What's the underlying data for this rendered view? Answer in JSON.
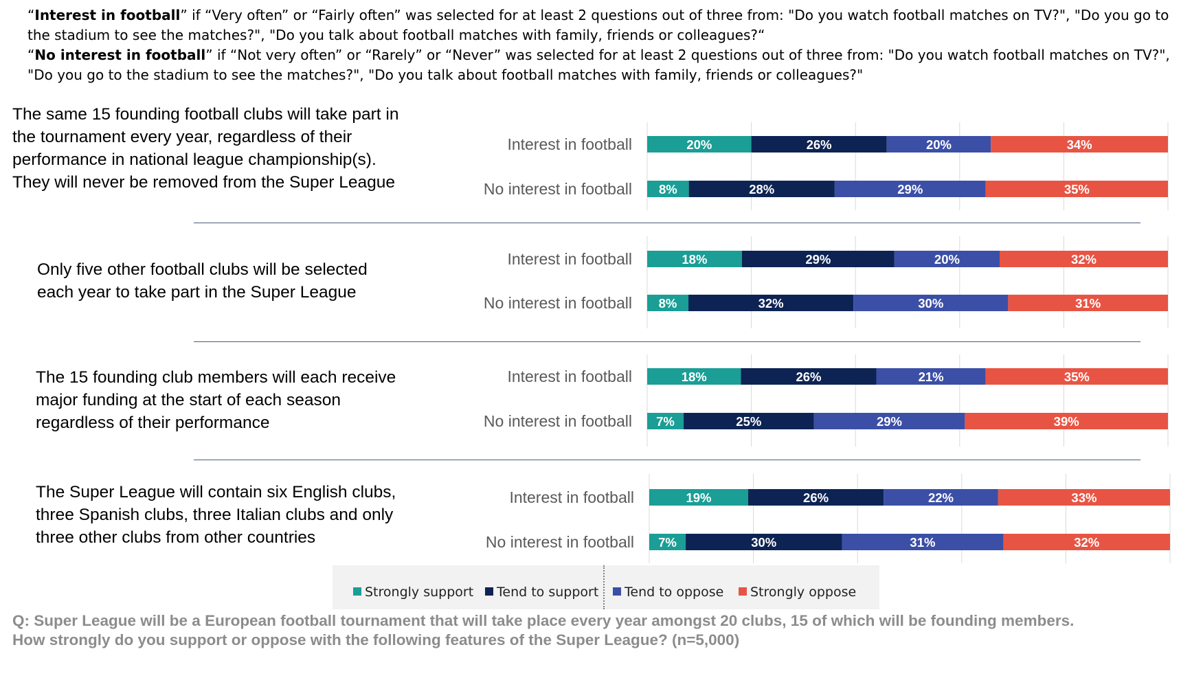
{
  "definitions": [
    {
      "open_quote": "“",
      "term": "Interest in football",
      "rest": "” if “Very often” or “Fairly often” was selected for at least 2 questions out of three from:  \"Do you watch football matches on TV?\", \"Do you go to the stadium to see the matches?\", \"Do you talk about football matches with family, friends or colleagues?“"
    },
    {
      "open_quote": "“",
      "term": "No interest in football",
      "rest": "” if “Not very often” or “Rarely” or “Never” was selected for at least 2 questions out of three from:  \"Do you watch football matches on TV?\", \"Do you go to the stadium to see the matches?\", \"Do you talk about football matches with family, friends or colleagues?\""
    }
  ],
  "statements": [
    [
      "The same 15 founding football clubs will take part in",
      "the tournament every year, regardless of their",
      "performance in national league championship(s).",
      "They will never be removed from the Super League"
    ],
    [
      "Only five other football clubs will be selected",
      "each year to take part in the Super League"
    ],
    [
      "The 15 founding club members will each receive",
      "major funding at the start of each season",
      "regardless of their performance"
    ],
    [
      "The Super League will contain six English clubs,",
      "three Spanish clubs, three Italian clubs and only",
      "three other clubs from other countries"
    ]
  ],
  "legend": {
    "strongly_support": "Strongly support",
    "tend_to_support": "Tend to support",
    "tend_to_oppose": "Tend to oppose",
    "strongly_oppose": "Strongly oppose"
  },
  "question": [
    "Q: Super League will be a European football tournament that will take place every year amongst 20 clubs, 15 of which will be founding members.",
    "How strongly do you support or oppose with the following features of the Super League? (n=5,000)"
  ],
  "chart_data": {
    "type": "bar",
    "orientation": "horizontal",
    "stacked": true,
    "normalized_percent": true,
    "grid": true,
    "legend_position": "bottom",
    "categories": [
      "Strongly support",
      "Tend to support",
      "Tend to oppose",
      "Strongly oppose"
    ],
    "colors": [
      "#1a9e96",
      "#0d2353",
      "#3b4fa6",
      "#e85444"
    ],
    "panels": [
      {
        "rows": [
          {
            "label": "Interest in football",
            "values": [
              20,
              26,
              20,
              34
            ]
          },
          {
            "label": "No interest in football",
            "values": [
              8,
              28,
              29,
              35
            ]
          }
        ]
      },
      {
        "rows": [
          {
            "label": "Interest in football",
            "values": [
              18,
              29,
              20,
              32
            ]
          },
          {
            "label": "No interest in football",
            "values": [
              8,
              32,
              30,
              31
            ]
          }
        ]
      },
      {
        "rows": [
          {
            "label": "Interest in football",
            "values": [
              18,
              26,
              21,
              35
            ]
          },
          {
            "label": "No interest in football",
            "values": [
              7,
              25,
              29,
              39
            ]
          }
        ]
      },
      {
        "rows": [
          {
            "label": "Interest in football",
            "values": [
              19,
              26,
              22,
              33
            ]
          },
          {
            "label": "No interest in football",
            "values": [
              7,
              30,
              31,
              32
            ]
          }
        ]
      }
    ]
  }
}
